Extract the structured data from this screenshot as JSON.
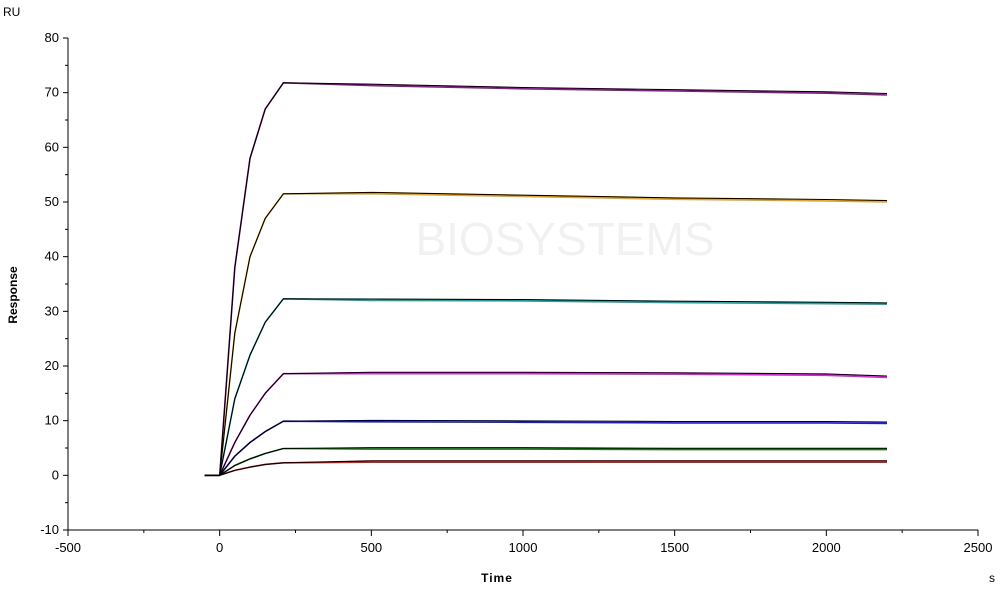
{
  "chart_data": {
    "type": "line",
    "title": "",
    "xlabel": "Time",
    "ylabel": "Response",
    "x_unit": "s",
    "y_unit": "RU",
    "xlim": [
      -500,
      2500
    ],
    "ylim": [
      -10,
      80
    ],
    "x_ticks": [
      -500,
      0,
      500,
      1000,
      1500,
      2000,
      2500
    ],
    "y_ticks": [
      -10,
      0,
      10,
      20,
      30,
      40,
      50,
      60,
      70,
      80
    ],
    "grid": false,
    "watermark": "BIOSYSTEMS",
    "series": [
      {
        "color": "#8b1a8b",
        "fit_color": "#000000",
        "x": [
          -50,
          0,
          50,
          100,
          150,
          210,
          500,
          1000,
          1500,
          2000,
          2200
        ],
        "y": [
          0,
          0,
          38,
          58,
          67,
          71.8,
          71.3,
          70.7,
          70.3,
          69.9,
          69.6
        ]
      },
      {
        "color": "#e8a317",
        "fit_color": "#000000",
        "x": [
          -50,
          0,
          50,
          100,
          150,
          210,
          500,
          1000,
          1500,
          2000,
          2200
        ],
        "y": [
          0,
          0,
          26,
          40,
          47,
          51.5,
          51.5,
          51.0,
          50.5,
          50.2,
          50.0
        ]
      },
      {
        "color": "#1aa3a3",
        "fit_color": "#000000",
        "x": [
          -50,
          0,
          50,
          100,
          150,
          210,
          500,
          1000,
          1500,
          2000,
          2200
        ],
        "y": [
          0,
          0,
          14,
          22,
          28,
          32.3,
          32.0,
          31.9,
          31.6,
          31.4,
          31.3
        ]
      },
      {
        "color": "#e020e0",
        "fit_color": "#000000",
        "x": [
          -50,
          0,
          50,
          100,
          150,
          210,
          500,
          1000,
          1500,
          2000,
          2200
        ],
        "y": [
          0,
          0,
          6,
          11,
          15,
          18.6,
          18.6,
          18.6,
          18.5,
          18.3,
          17.9
        ]
      },
      {
        "color": "#1a1ad8",
        "fit_color": "#000000",
        "x": [
          -50,
          0,
          50,
          100,
          150,
          210,
          500,
          1000,
          1500,
          2000,
          2200
        ],
        "y": [
          0,
          0,
          3.5,
          6,
          8,
          9.9,
          9.8,
          9.7,
          9.6,
          9.6,
          9.5
        ]
      },
      {
        "color": "#1a7a1a",
        "fit_color": "#000000",
        "x": [
          -50,
          0,
          50,
          100,
          150,
          210,
          500,
          1000,
          1500,
          2000,
          2200
        ],
        "y": [
          0,
          0,
          1.8,
          3,
          4,
          4.9,
          4.8,
          4.8,
          4.7,
          4.7,
          4.7
        ]
      },
      {
        "color": "#d81a1a",
        "fit_color": "#000000",
        "x": [
          -50,
          0,
          50,
          100,
          150,
          210,
          500,
          1000,
          1500,
          2000,
          2200
        ],
        "y": [
          0,
          0,
          0.9,
          1.5,
          2,
          2.3,
          2.4,
          2.4,
          2.4,
          2.4,
          2.4
        ]
      }
    ]
  }
}
